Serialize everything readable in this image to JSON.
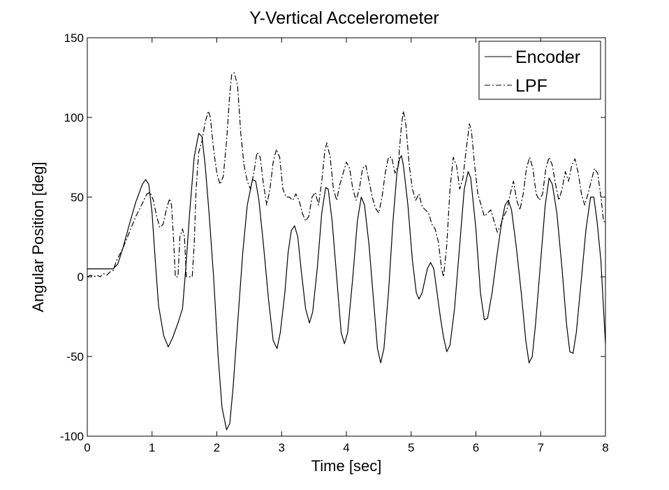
{
  "chart_data": {
    "type": "line",
    "title": "Y-Vertical Accelerometer",
    "xlabel": "Time [sec]",
    "ylabel": "Angular Position [deg]",
    "xlim": [
      0,
      8
    ],
    "ylim": [
      -100,
      150
    ],
    "xticks": [
      0,
      1,
      2,
      3,
      4,
      5,
      6,
      7,
      8
    ],
    "yticks": [
      -100,
      -50,
      0,
      50,
      100,
      150
    ],
    "grid": false,
    "legend_position": "top-right",
    "series": [
      {
        "name": "Encoder",
        "line_style": "solid",
        "color": "#000000",
        "points": [
          [
            0,
            5
          ],
          [
            0.4,
            5
          ],
          [
            0.47,
            8
          ],
          [
            0.55,
            18
          ],
          [
            0.65,
            33
          ],
          [
            0.75,
            47
          ],
          [
            0.85,
            58
          ],
          [
            0.9,
            61
          ],
          [
            0.95,
            58
          ],
          [
            1.0,
            40
          ],
          [
            1.05,
            10
          ],
          [
            1.1,
            -18
          ],
          [
            1.18,
            -37
          ],
          [
            1.25,
            -44
          ],
          [
            1.32,
            -38
          ],
          [
            1.4,
            -29
          ],
          [
            1.47,
            -20
          ],
          [
            1.52,
            5
          ],
          [
            1.58,
            40
          ],
          [
            1.65,
            75
          ],
          [
            1.72,
            90
          ],
          [
            1.77,
            88
          ],
          [
            1.82,
            70
          ],
          [
            1.88,
            40
          ],
          [
            1.95,
            0
          ],
          [
            2.02,
            -50
          ],
          [
            2.08,
            -82
          ],
          [
            2.15,
            -96
          ],
          [
            2.2,
            -92
          ],
          [
            2.25,
            -70
          ],
          [
            2.32,
            -30
          ],
          [
            2.4,
            15
          ],
          [
            2.47,
            45
          ],
          [
            2.55,
            61
          ],
          [
            2.6,
            60
          ],
          [
            2.65,
            48
          ],
          [
            2.72,
            20
          ],
          [
            2.8,
            -15
          ],
          [
            2.87,
            -40
          ],
          [
            2.93,
            -45
          ],
          [
            2.98,
            -35
          ],
          [
            3.05,
            -10
          ],
          [
            3.1,
            15
          ],
          [
            3.15,
            29
          ],
          [
            3.2,
            32
          ],
          [
            3.25,
            25
          ],
          [
            3.3,
            5
          ],
          [
            3.37,
            -20
          ],
          [
            3.43,
            -29
          ],
          [
            3.48,
            -22
          ],
          [
            3.55,
            5
          ],
          [
            3.62,
            40
          ],
          [
            3.68,
            56
          ],
          [
            3.72,
            55
          ],
          [
            3.78,
            35
          ],
          [
            3.85,
            0
          ],
          [
            3.92,
            -35
          ],
          [
            3.97,
            -42
          ],
          [
            4.02,
            -35
          ],
          [
            4.1,
            0
          ],
          [
            4.17,
            35
          ],
          [
            4.23,
            50
          ],
          [
            4.28,
            45
          ],
          [
            4.35,
            20
          ],
          [
            4.42,
            -15
          ],
          [
            4.48,
            -45
          ],
          [
            4.53,
            -54
          ],
          [
            4.58,
            -45
          ],
          [
            4.65,
            -10
          ],
          [
            4.72,
            35
          ],
          [
            4.78,
            65
          ],
          [
            4.82,
            74
          ],
          [
            4.85,
            76
          ],
          [
            4.88,
            70
          ],
          [
            4.95,
            45
          ],
          [
            5.02,
            10
          ],
          [
            5.08,
            -10
          ],
          [
            5.12,
            -14
          ],
          [
            5.17,
            -10
          ],
          [
            5.25,
            5
          ],
          [
            5.3,
            9
          ],
          [
            5.35,
            5
          ],
          [
            5.4,
            -10
          ],
          [
            5.45,
            -25
          ],
          [
            5.5,
            -38
          ],
          [
            5.55,
            -47
          ],
          [
            5.6,
            -43
          ],
          [
            5.67,
            -20
          ],
          [
            5.75,
            20
          ],
          [
            5.82,
            55
          ],
          [
            5.88,
            66
          ],
          [
            5.92,
            62
          ],
          [
            6.0,
            30
          ],
          [
            6.07,
            -10
          ],
          [
            6.13,
            -27
          ],
          [
            6.18,
            -26
          ],
          [
            6.25,
            -10
          ],
          [
            6.33,
            15
          ],
          [
            6.4,
            35
          ],
          [
            6.45,
            45
          ],
          [
            6.5,
            48
          ],
          [
            6.55,
            42
          ],
          [
            6.62,
            20
          ],
          [
            6.7,
            -10
          ],
          [
            6.77,
            -40
          ],
          [
            6.82,
            -54
          ],
          [
            6.87,
            -50
          ],
          [
            6.92,
            -30
          ],
          [
            7.0,
            10
          ],
          [
            7.07,
            45
          ],
          [
            7.13,
            62
          ],
          [
            7.18,
            58
          ],
          [
            7.25,
            40
          ],
          [
            7.33,
            5
          ],
          [
            7.4,
            -30
          ],
          [
            7.45,
            -47
          ],
          [
            7.5,
            -48
          ],
          [
            7.55,
            -35
          ],
          [
            7.62,
            -5
          ],
          [
            7.7,
            30
          ],
          [
            7.77,
            50
          ],
          [
            7.82,
            50
          ],
          [
            7.87,
            35
          ],
          [
            7.93,
            10
          ],
          [
            7.97,
            -20
          ],
          [
            8.0,
            -42
          ]
        ]
      },
      {
        "name": "LPF",
        "line_style": "dash-dot",
        "color": "#000000",
        "points": [
          [
            0,
            0
          ],
          [
            0.05,
            1
          ],
          [
            0.1,
            0
          ],
          [
            0.15,
            1
          ],
          [
            0.2,
            0
          ],
          [
            0.25,
            2
          ],
          [
            0.3,
            1
          ],
          [
            0.35,
            3
          ],
          [
            0.4,
            4
          ],
          [
            0.45,
            10
          ],
          [
            0.55,
            18
          ],
          [
            0.65,
            28
          ],
          [
            0.75,
            38
          ],
          [
            0.85,
            46
          ],
          [
            0.92,
            52
          ],
          [
            0.97,
            53
          ],
          [
            1.02,
            48
          ],
          [
            1.07,
            38
          ],
          [
            1.12,
            31
          ],
          [
            1.17,
            33
          ],
          [
            1.22,
            42
          ],
          [
            1.27,
            49
          ],
          [
            1.3,
            45
          ],
          [
            1.33,
            25
          ],
          [
            1.36,
            0
          ],
          [
            1.4,
            0
          ],
          [
            1.43,
            25
          ],
          [
            1.47,
            30
          ],
          [
            1.5,
            25
          ],
          [
            1.53,
            0
          ],
          [
            1.62,
            0
          ],
          [
            1.65,
            20
          ],
          [
            1.68,
            55
          ],
          [
            1.72,
            78
          ],
          [
            1.77,
            85
          ],
          [
            1.82,
            97
          ],
          [
            1.87,
            104
          ],
          [
            1.9,
            100
          ],
          [
            1.95,
            80
          ],
          [
            2.0,
            65
          ],
          [
            2.05,
            58
          ],
          [
            2.1,
            63
          ],
          [
            2.15,
            85
          ],
          [
            2.2,
            115
          ],
          [
            2.23,
            127
          ],
          [
            2.27,
            128
          ],
          [
            2.32,
            120
          ],
          [
            2.37,
            90
          ],
          [
            2.42,
            70
          ],
          [
            2.47,
            60
          ],
          [
            2.52,
            55
          ],
          [
            2.57,
            65
          ],
          [
            2.62,
            78
          ],
          [
            2.67,
            75
          ],
          [
            2.72,
            58
          ],
          [
            2.77,
            45
          ],
          [
            2.82,
            55
          ],
          [
            2.87,
            72
          ],
          [
            2.92,
            80
          ],
          [
            2.97,
            75
          ],
          [
            3.02,
            55
          ],
          [
            3.07,
            50
          ],
          [
            3.12,
            50
          ],
          [
            3.17,
            48
          ],
          [
            3.22,
            52
          ],
          [
            3.27,
            48
          ],
          [
            3.32,
            40
          ],
          [
            3.37,
            35
          ],
          [
            3.42,
            38
          ],
          [
            3.47,
            50
          ],
          [
            3.52,
            53
          ],
          [
            3.57,
            45
          ],
          [
            3.62,
            60
          ],
          [
            3.67,
            80
          ],
          [
            3.7,
            84
          ],
          [
            3.75,
            75
          ],
          [
            3.8,
            55
          ],
          [
            3.85,
            48
          ],
          [
            3.9,
            58
          ],
          [
            3.95,
            65
          ],
          [
            4.0,
            72
          ],
          [
            4.05,
            68
          ],
          [
            4.1,
            55
          ],
          [
            4.15,
            48
          ],
          [
            4.2,
            55
          ],
          [
            4.25,
            68
          ],
          [
            4.3,
            70
          ],
          [
            4.35,
            60
          ],
          [
            4.4,
            50
          ],
          [
            4.45,
            43
          ],
          [
            4.5,
            40
          ],
          [
            4.55,
            50
          ],
          [
            4.6,
            65
          ],
          [
            4.65,
            75
          ],
          [
            4.7,
            75
          ],
          [
            4.75,
            65
          ],
          [
            4.8,
            70
          ],
          [
            4.85,
            95
          ],
          [
            4.88,
            104
          ],
          [
            4.92,
            95
          ],
          [
            4.97,
            70
          ],
          [
            5.02,
            55
          ],
          [
            5.07,
            48
          ],
          [
            5.12,
            52
          ],
          [
            5.17,
            44
          ],
          [
            5.22,
            42
          ],
          [
            5.27,
            40
          ],
          [
            5.32,
            33
          ],
          [
            5.37,
            30
          ],
          [
            5.42,
            22
          ],
          [
            5.47,
            5
          ],
          [
            5.5,
            0
          ],
          [
            5.55,
            20
          ],
          [
            5.6,
            55
          ],
          [
            5.65,
            75
          ],
          [
            5.7,
            70
          ],
          [
            5.75,
            55
          ],
          [
            5.8,
            62
          ],
          [
            5.85,
            80
          ],
          [
            5.9,
            96
          ],
          [
            5.93,
            92
          ],
          [
            5.98,
            70
          ],
          [
            6.03,
            52
          ],
          [
            6.08,
            45
          ],
          [
            6.13,
            38
          ],
          [
            6.18,
            40
          ],
          [
            6.23,
            42
          ],
          [
            6.28,
            35
          ],
          [
            6.33,
            28
          ],
          [
            6.38,
            32
          ],
          [
            6.43,
            38
          ],
          [
            6.48,
            42
          ],
          [
            6.53,
            52
          ],
          [
            6.58,
            60
          ],
          [
            6.63,
            48
          ],
          [
            6.68,
            42
          ],
          [
            6.73,
            52
          ],
          [
            6.78,
            68
          ],
          [
            6.83,
            75
          ],
          [
            6.88,
            68
          ],
          [
            6.93,
            52
          ],
          [
            6.98,
            48
          ],
          [
            7.03,
            52
          ],
          [
            7.08,
            68
          ],
          [
            7.13,
            75
          ],
          [
            7.18,
            70
          ],
          [
            7.23,
            58
          ],
          [
            7.28,
            48
          ],
          [
            7.33,
            55
          ],
          [
            7.38,
            66
          ],
          [
            7.43,
            60
          ],
          [
            7.48,
            70
          ],
          [
            7.53,
            74
          ],
          [
            7.58,
            65
          ],
          [
            7.63,
            52
          ],
          [
            7.68,
            45
          ],
          [
            7.73,
            52
          ],
          [
            7.78,
            60
          ],
          [
            7.83,
            68
          ],
          [
            7.88,
            65
          ],
          [
            7.93,
            50
          ],
          [
            7.97,
            35
          ],
          [
            8.0,
            34
          ]
        ]
      }
    ]
  }
}
